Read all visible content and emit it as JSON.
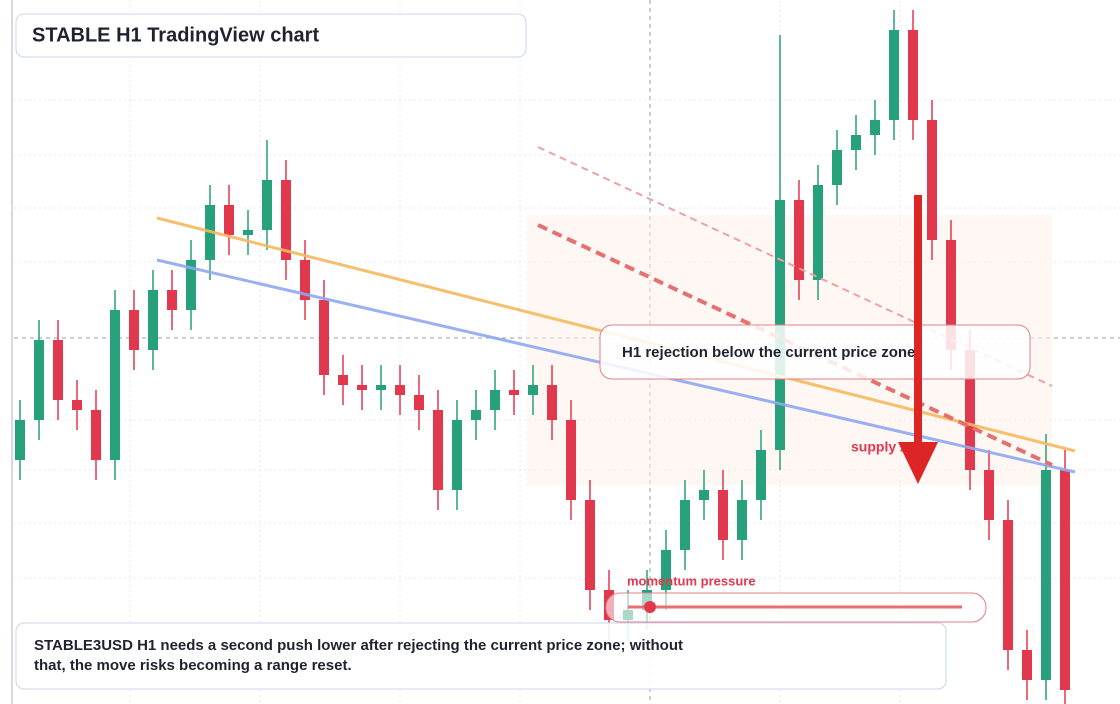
{
  "chart_data": {
    "type": "candlestick",
    "title": "STABLE H1 TradingView chart",
    "annotations": {
      "zone": "H1 rejection below the current price zone",
      "supply": "supply zone",
      "momentum": "momentum pressure",
      "note": "STABLE3USD H1 needs a second push lower after rejecting the current price zone; without that, the move risks becoming a range reset."
    },
    "up_color": "#26a17b",
    "down_color": "#e2384d",
    "ylim": [
      0,
      704
    ],
    "open": [
      244,
      284,
      364,
      304,
      294,
      244,
      394,
      354,
      414,
      394,
      444,
      499,
      469,
      474,
      524,
      444,
      404,
      329,
      319,
      314,
      319,
      309,
      294,
      214,
      284,
      294,
      314,
      309,
      319,
      284,
      204,
      114,
      84,
      94,
      114,
      154,
      204,
      214,
      164,
      204,
      254,
      504,
      424,
      519,
      554,
      569,
      584,
      674,
      584,
      464,
      354,
      234,
      184,
      54,
      24,
      234
    ],
    "high": [
      304,
      384,
      384,
      324,
      314,
      414,
      414,
      434,
      434,
      464,
      519,
      519,
      494,
      564,
      544,
      464,
      424,
      349,
      339,
      339,
      339,
      329,
      314,
      304,
      314,
      334,
      334,
      339,
      339,
      304,
      224,
      134,
      114,
      134,
      174,
      224,
      234,
      234,
      224,
      274,
      669,
      524,
      539,
      574,
      589,
      604,
      694,
      694,
      604,
      484,
      374,
      254,
      204,
      74,
      270,
      254
    ],
    "low": [
      224,
      264,
      284,
      274,
      224,
      224,
      334,
      334,
      374,
      374,
      424,
      449,
      449,
      454,
      424,
      384,
      309,
      299,
      294,
      294,
      289,
      274,
      194,
      194,
      264,
      274,
      289,
      289,
      264,
      184,
      94,
      64,
      64,
      74,
      94,
      134,
      184,
      144,
      144,
      184,
      234,
      404,
      404,
      499,
      534,
      549,
      564,
      564,
      444,
      334,
      214,
      164,
      34,
      4,
      4,
      0
    ],
    "close": [
      284,
      364,
      304,
      294,
      244,
      394,
      354,
      414,
      394,
      444,
      499,
      469,
      474,
      524,
      444,
      404,
      329,
      319,
      314,
      319,
      309,
      294,
      214,
      284,
      294,
      314,
      309,
      319,
      284,
      204,
      114,
      84,
      94,
      114,
      154,
      204,
      214,
      164,
      204,
      254,
      504,
      424,
      519,
      554,
      569,
      584,
      674,
      584,
      464,
      354,
      234,
      184,
      54,
      24,
      234,
      14
    ]
  }
}
